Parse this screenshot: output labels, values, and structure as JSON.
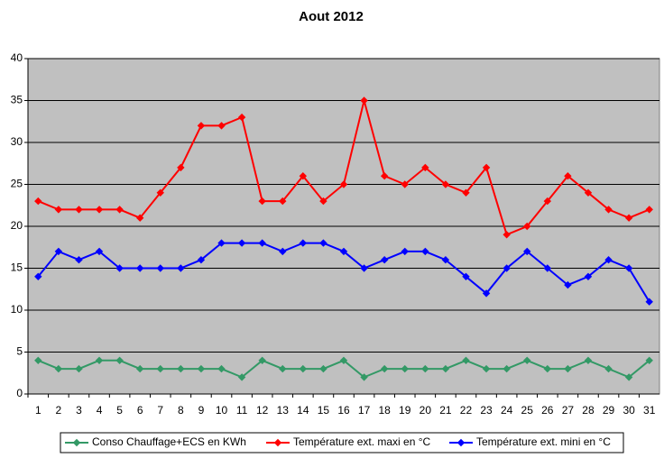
{
  "chart_data": {
    "type": "line",
    "title": "Aout 2012",
    "categories": [
      "1",
      "2",
      "3",
      "4",
      "5",
      "6",
      "7",
      "8",
      "9",
      "10",
      "11",
      "12",
      "13",
      "14",
      "15",
      "16",
      "17",
      "18",
      "19",
      "20",
      "21",
      "22",
      "23",
      "24",
      "25",
      "26",
      "27",
      "28",
      "29",
      "30",
      "31"
    ],
    "series": [
      {
        "name": "Conso Chauffage+ECS en KWh",
        "color": "#339966",
        "values": [
          4,
          3,
          3,
          4,
          4,
          3,
          3,
          3,
          3,
          3,
          2,
          4,
          3,
          3,
          3,
          4,
          2,
          3,
          3,
          3,
          3,
          4,
          3,
          3,
          4,
          3,
          3,
          4,
          3,
          2,
          4
        ]
      },
      {
        "name": "Température ext. maxi en °C",
        "color": "#ff0000",
        "values": [
          23,
          22,
          22,
          22,
          22,
          21,
          24,
          27,
          32,
          32,
          33,
          23,
          23,
          26,
          23,
          25,
          35,
          26,
          25,
          27,
          25,
          24,
          27,
          19,
          20,
          23,
          26,
          24,
          22,
          21,
          22
        ]
      },
      {
        "name": "Température ext. mini en °C",
        "color": "#0000ff",
        "values": [
          14,
          17,
          16,
          17,
          15,
          15,
          15,
          15,
          16,
          18,
          18,
          18,
          17,
          18,
          18,
          17,
          15,
          16,
          17,
          17,
          16,
          14,
          12,
          15,
          17,
          15,
          13,
          14,
          16,
          15,
          11
        ]
      }
    ],
    "ylim": [
      0,
      40
    ],
    "yticks": [
      0,
      5,
      10,
      15,
      20,
      25,
      30,
      35,
      40
    ],
    "grid": true,
    "legend": "bottom"
  }
}
